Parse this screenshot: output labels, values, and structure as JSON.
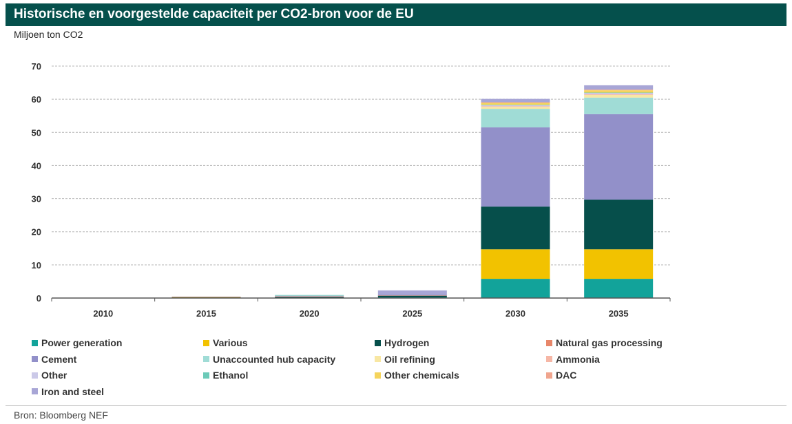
{
  "title": "Historische en voorgestelde capaciteit per CO2-bron voor de EU",
  "unit_label": "Miljoen ton CO2",
  "source": "Bron: Bloomberg NEF",
  "chart_data": {
    "type": "bar",
    "stacked": true,
    "title": "Historische en voorgestelde capaciteit per CO2-bron voor de EU",
    "ylabel": "Miljoen ton CO2",
    "xlabel": "",
    "ylim": [
      0,
      70
    ],
    "yticks": [
      0,
      10,
      20,
      30,
      40,
      50,
      60,
      70
    ],
    "grid": true,
    "categories": [
      "2010",
      "2015",
      "2020",
      "2025",
      "2030",
      "2035"
    ],
    "series": [
      {
        "name": "Power generation",
        "color": "#12a39a",
        "values": [
          0,
          0,
          0.1,
          0.2,
          5.8,
          5.8
        ]
      },
      {
        "name": "Various",
        "color": "#f2c200",
        "values": [
          0,
          0.2,
          0,
          0,
          8.9,
          8.9
        ]
      },
      {
        "name": "Hydrogen",
        "color": "#064f4b",
        "values": [
          0,
          0.1,
          0.3,
          0.5,
          12.9,
          15.0
        ]
      },
      {
        "name": "Natural gas processing",
        "color": "#e8876a",
        "values": [
          0,
          0.1,
          0.1,
          0.1,
          0,
          0
        ]
      },
      {
        "name": "Cement",
        "color": "#9290c9",
        "values": [
          0,
          0,
          0,
          0.3,
          23.9,
          25.8
        ]
      },
      {
        "name": "Unaccounted hub capacity",
        "color": "#a0dcd6",
        "values": [
          0,
          0,
          0,
          0,
          5.6,
          5.0
        ]
      },
      {
        "name": "Oil refining",
        "color": "#f8e7a3",
        "values": [
          0,
          0,
          0,
          0,
          0.6,
          0.8
        ]
      },
      {
        "name": "Ammonia",
        "color": "#f6b7a6",
        "values": [
          0,
          0,
          0,
          0,
          0.2,
          0.2
        ]
      },
      {
        "name": "Other",
        "color": "#cbc9e8",
        "values": [
          0,
          0,
          0.2,
          0,
          0.3,
          0.4
        ]
      },
      {
        "name": "Ethanol",
        "color": "#6ccab8",
        "values": [
          0,
          0,
          0.2,
          0,
          0.1,
          0.1
        ]
      },
      {
        "name": "Other chemicals",
        "color": "#f5d45c",
        "values": [
          0,
          0,
          0,
          0,
          0.6,
          0.7
        ]
      },
      {
        "name": "DAC",
        "color": "#f0a58e",
        "values": [
          0,
          0,
          0,
          0,
          0.2,
          0.2
        ]
      },
      {
        "name": "Iron and steel",
        "color": "#a8a6d6",
        "values": [
          0,
          0,
          0,
          1.2,
          1.0,
          1.3
        ]
      }
    ]
  }
}
